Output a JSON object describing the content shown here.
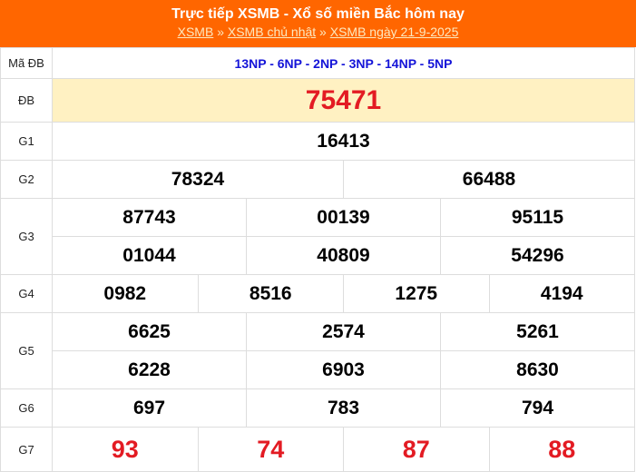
{
  "header": {
    "title": "Trực tiếp XSMB - Xổ số miền Bắc hôm nay",
    "breadcrumbs": [
      "XSMB",
      "XSMB chủ nhật",
      "XSMB ngày 21-9-2025"
    ],
    "separator": "»",
    "background": "#ff6600"
  },
  "table": {
    "ma_db": {
      "label": "Mã ĐB",
      "value": "13NP - 6NP - 2NP - 3NP - 14NP - 5NP"
    },
    "db": {
      "label": "ĐB",
      "value": "75471"
    },
    "g1": {
      "label": "G1",
      "values": [
        "16413"
      ]
    },
    "g2": {
      "label": "G2",
      "values": [
        "78324",
        "66488"
      ]
    },
    "g3": {
      "label": "G3",
      "values": [
        "87743",
        "00139",
        "95115",
        "01044",
        "40809",
        "54296"
      ]
    },
    "g4": {
      "label": "G4",
      "values": [
        "0982",
        "8516",
        "1275",
        "4194"
      ]
    },
    "g5": {
      "label": "G5",
      "values": [
        "6625",
        "2574",
        "5261",
        "6228",
        "6903",
        "8630"
      ]
    },
    "g6": {
      "label": "G6",
      "values": [
        "697",
        "783",
        "794"
      ]
    },
    "g7": {
      "label": "G7",
      "values": [
        "93",
        "74",
        "87",
        "88"
      ]
    }
  }
}
